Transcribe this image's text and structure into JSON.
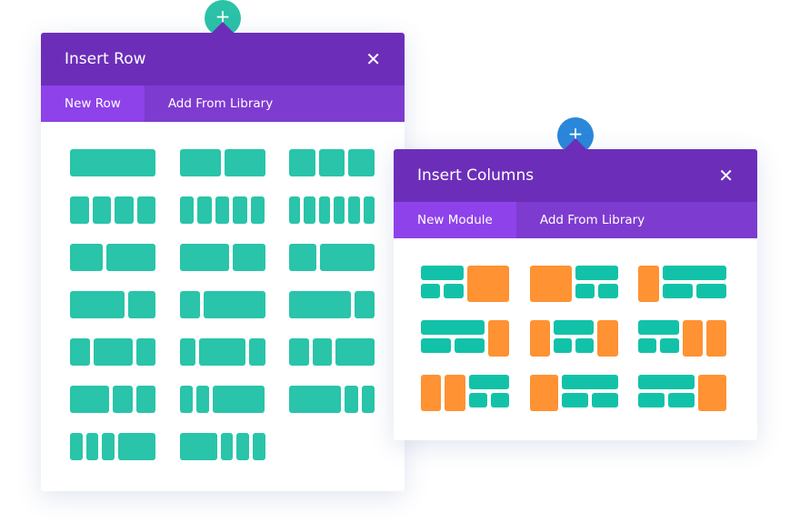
{
  "insert_row": {
    "title": "Insert Row",
    "close_icon": "close-icon",
    "add_icon": "plus-icon",
    "tabs": [
      {
        "label": "New Row",
        "active": true
      },
      {
        "label": "Add From Library",
        "active": false
      }
    ],
    "layouts": [
      [
        "1"
      ],
      [
        "1/2",
        "1/2"
      ],
      [
        "1/3",
        "1/3",
        "1/3"
      ],
      [
        "1/4",
        "1/4",
        "1/4",
        "1/4"
      ],
      [
        "1/5",
        "1/5",
        "1/5",
        "1/5",
        "1/5"
      ],
      [
        "1/6",
        "1/6",
        "1/6",
        "1/6",
        "1/6",
        "1/6"
      ],
      [
        "2/5",
        "3/5"
      ],
      [
        "3/5",
        "2/5"
      ],
      [
        "1/3",
        "2/3"
      ],
      [
        "2/3",
        "1/3"
      ],
      [
        "1/4",
        "3/4"
      ],
      [
        "3/4",
        "1/4"
      ],
      [
        "1/4",
        "1/2",
        "1/4"
      ],
      [
        "1/5",
        "3/5",
        "1/5"
      ],
      [
        "1/4",
        "1/4",
        "1/2"
      ],
      [
        "1/2",
        "1/4",
        "1/4"
      ],
      [
        "1/6",
        "1/6",
        "2/3"
      ],
      [
        "2/3",
        "1/6",
        "1/6"
      ],
      [
        "1/6",
        "1/6",
        "1/6",
        "1/2"
      ],
      [
        "1/2",
        "1/6",
        "1/6",
        "1/6"
      ]
    ]
  },
  "insert_columns": {
    "title": "Insert Columns",
    "close_icon": "close-icon",
    "add_icon": "plus-icon",
    "tabs": [
      {
        "label": "New Module",
        "active": true
      },
      {
        "label": "Add From Library",
        "active": false
      }
    ],
    "layouts": [
      [
        [
          "s",
          "1/2"
        ],
        [
          "o",
          "1/2"
        ]
      ],
      [
        [
          "o",
          "1/2"
        ],
        [
          "s",
          "1/2"
        ]
      ],
      [
        [
          "o",
          "1/4"
        ],
        [
          "s",
          "3/4"
        ]
      ],
      [
        [
          "s",
          "3/4"
        ],
        [
          "o",
          "1/4"
        ]
      ],
      [
        [
          "o",
          "1/4"
        ],
        [
          "s",
          "1/2"
        ],
        [
          "o",
          "1/4"
        ]
      ],
      [
        [
          "s",
          "1/2"
        ],
        [
          "o",
          "1/4"
        ],
        [
          "o",
          "1/4"
        ]
      ],
      [
        [
          "o",
          "1/4"
        ],
        [
          "o",
          "1/4"
        ],
        [
          "s",
          "1/2"
        ]
      ],
      [
        [
          "o",
          "1/3"
        ],
        [
          "s",
          "2/3"
        ]
      ],
      [
        [
          "s",
          "2/3"
        ],
        [
          "o",
          "1/3"
        ]
      ]
    ]
  },
  "colors": {
    "header": "#6c2eb9",
    "tabbar": "#7e3bd0",
    "active_tab": "#8e42ea",
    "teal": "#29c4a9",
    "orange": "#ff9232",
    "row_button": "#2bc2a8",
    "column_button": "#2b87da"
  }
}
